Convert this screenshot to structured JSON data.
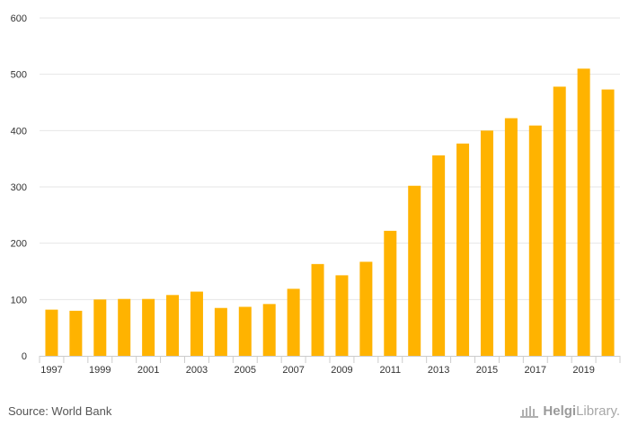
{
  "colors": {
    "bar": "#FFB300",
    "grid": "#e6e6e6",
    "axis": "#cccccc",
    "text": "#333333"
  },
  "footer": {
    "source": "Source: World Bank",
    "brand_bold": "Helgi",
    "brand_rest": "Library."
  },
  "chart_data": {
    "type": "bar",
    "title": "",
    "xlabel": "",
    "ylabel": "",
    "ylim": [
      0,
      600
    ],
    "yticks": [
      0,
      100,
      200,
      300,
      400,
      500,
      600
    ],
    "grid": true,
    "legend": "none",
    "categories": [
      "1997",
      "1998",
      "1999",
      "2000",
      "2001",
      "2002",
      "2003",
      "2004",
      "2005",
      "2006",
      "2007",
      "2008",
      "2009",
      "2010",
      "2011",
      "2012",
      "2013",
      "2014",
      "2015",
      "2016",
      "2017",
      "2018",
      "2019",
      "2020"
    ],
    "xtick_labels": [
      "1997",
      "1999",
      "2001",
      "2003",
      "2005",
      "2007",
      "2009",
      "2011",
      "2013",
      "2015",
      "2017",
      "2019"
    ],
    "values": [
      82,
      80,
      100,
      101,
      101,
      108,
      114,
      85,
      87,
      92,
      119,
      163,
      143,
      167,
      222,
      302,
      356,
      377,
      400,
      422,
      409,
      478,
      510,
      473
    ]
  }
}
